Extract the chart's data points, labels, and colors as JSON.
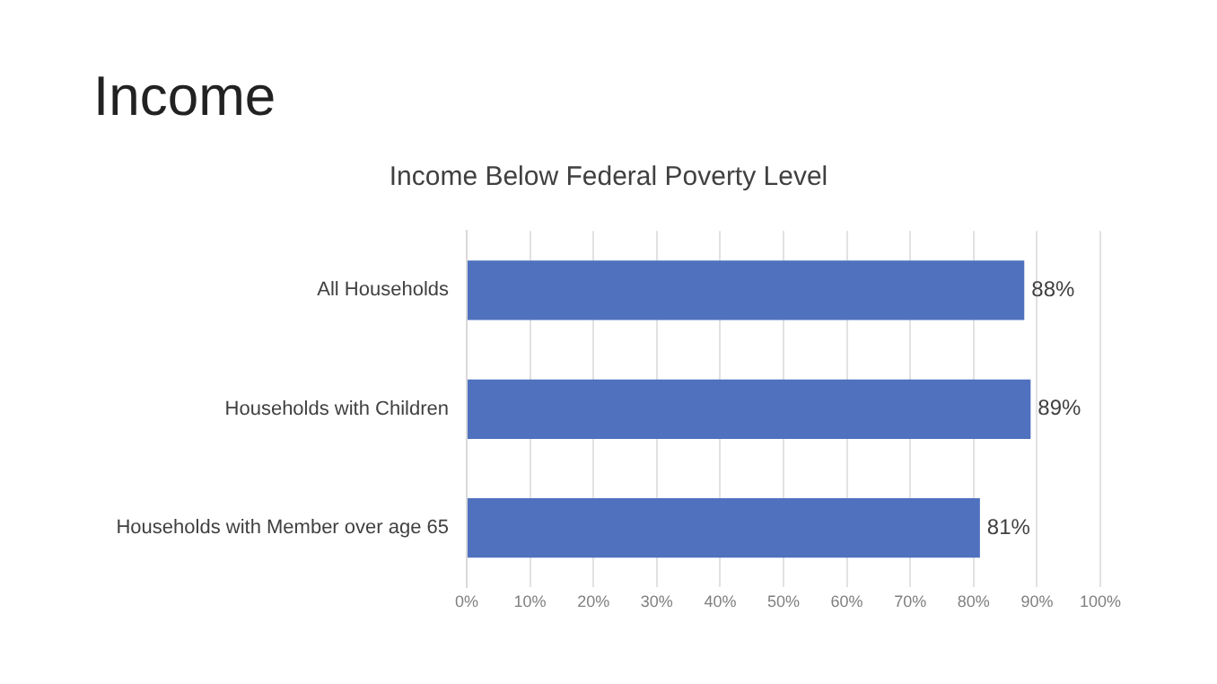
{
  "chart_data": {
    "type": "bar",
    "orientation": "horizontal",
    "title": "Income",
    "subtitle": "Income Below Federal Poverty Level",
    "categories": [
      "All Households",
      "Households with Children",
      "Households with Member over age 65"
    ],
    "values": [
      88,
      89,
      81
    ],
    "value_labels": [
      "88%",
      "89%",
      "81%"
    ],
    "color": "#4f71be",
    "xlim": [
      0,
      100
    ],
    "xticks": [
      {
        "value": 0,
        "label": "0%"
      },
      {
        "value": 10,
        "label": "10%"
      },
      {
        "value": 20,
        "label": "20%"
      },
      {
        "value": 30,
        "label": "30%"
      },
      {
        "value": 40,
        "label": "40%"
      },
      {
        "value": 50,
        "label": "50%"
      },
      {
        "value": 60,
        "label": "60%"
      },
      {
        "value": 70,
        "label": "70%"
      },
      {
        "value": 80,
        "label": "80%"
      },
      {
        "value": 90,
        "label": "90%"
      },
      {
        "value": 100,
        "label": "100%"
      }
    ],
    "grid": "x",
    "legend": false
  }
}
